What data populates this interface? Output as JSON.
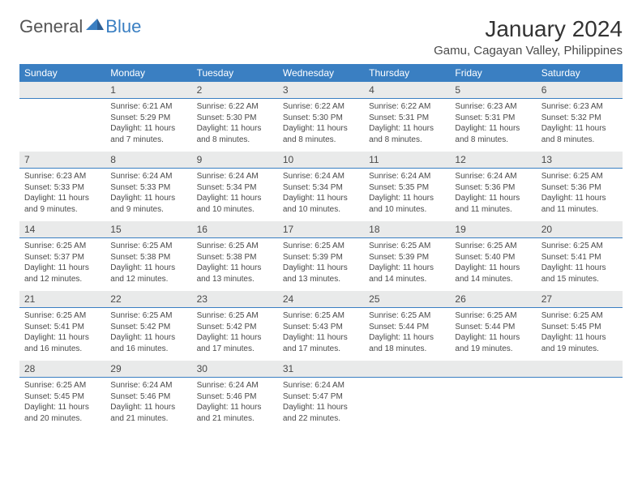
{
  "logo": {
    "general": "General",
    "blue": "Blue"
  },
  "title": "January 2024",
  "location": "Gamu, Cagayan Valley, Philippines",
  "colors": {
    "header_bg": "#3a7fc2",
    "header_text": "#ffffff",
    "daynum_bg": "#e9eaea",
    "accent_border": "#3a7fc2",
    "body_text": "#4a4a4a"
  },
  "dayNames": [
    "Sunday",
    "Monday",
    "Tuesday",
    "Wednesday",
    "Thursday",
    "Friday",
    "Saturday"
  ],
  "weeks": [
    [
      null,
      {
        "n": "1",
        "sr": "Sunrise: 6:21 AM",
        "ss": "Sunset: 5:29 PM",
        "d1": "Daylight: 11 hours",
        "d2": "and 7 minutes."
      },
      {
        "n": "2",
        "sr": "Sunrise: 6:22 AM",
        "ss": "Sunset: 5:30 PM",
        "d1": "Daylight: 11 hours",
        "d2": "and 8 minutes."
      },
      {
        "n": "3",
        "sr": "Sunrise: 6:22 AM",
        "ss": "Sunset: 5:30 PM",
        "d1": "Daylight: 11 hours",
        "d2": "and 8 minutes."
      },
      {
        "n": "4",
        "sr": "Sunrise: 6:22 AM",
        "ss": "Sunset: 5:31 PM",
        "d1": "Daylight: 11 hours",
        "d2": "and 8 minutes."
      },
      {
        "n": "5",
        "sr": "Sunrise: 6:23 AM",
        "ss": "Sunset: 5:31 PM",
        "d1": "Daylight: 11 hours",
        "d2": "and 8 minutes."
      },
      {
        "n": "6",
        "sr": "Sunrise: 6:23 AM",
        "ss": "Sunset: 5:32 PM",
        "d1": "Daylight: 11 hours",
        "d2": "and 8 minutes."
      }
    ],
    [
      {
        "n": "7",
        "sr": "Sunrise: 6:23 AM",
        "ss": "Sunset: 5:33 PM",
        "d1": "Daylight: 11 hours",
        "d2": "and 9 minutes."
      },
      {
        "n": "8",
        "sr": "Sunrise: 6:24 AM",
        "ss": "Sunset: 5:33 PM",
        "d1": "Daylight: 11 hours",
        "d2": "and 9 minutes."
      },
      {
        "n": "9",
        "sr": "Sunrise: 6:24 AM",
        "ss": "Sunset: 5:34 PM",
        "d1": "Daylight: 11 hours",
        "d2": "and 10 minutes."
      },
      {
        "n": "10",
        "sr": "Sunrise: 6:24 AM",
        "ss": "Sunset: 5:34 PM",
        "d1": "Daylight: 11 hours",
        "d2": "and 10 minutes."
      },
      {
        "n": "11",
        "sr": "Sunrise: 6:24 AM",
        "ss": "Sunset: 5:35 PM",
        "d1": "Daylight: 11 hours",
        "d2": "and 10 minutes."
      },
      {
        "n": "12",
        "sr": "Sunrise: 6:24 AM",
        "ss": "Sunset: 5:36 PM",
        "d1": "Daylight: 11 hours",
        "d2": "and 11 minutes."
      },
      {
        "n": "13",
        "sr": "Sunrise: 6:25 AM",
        "ss": "Sunset: 5:36 PM",
        "d1": "Daylight: 11 hours",
        "d2": "and 11 minutes."
      }
    ],
    [
      {
        "n": "14",
        "sr": "Sunrise: 6:25 AM",
        "ss": "Sunset: 5:37 PM",
        "d1": "Daylight: 11 hours",
        "d2": "and 12 minutes."
      },
      {
        "n": "15",
        "sr": "Sunrise: 6:25 AM",
        "ss": "Sunset: 5:38 PM",
        "d1": "Daylight: 11 hours",
        "d2": "and 12 minutes."
      },
      {
        "n": "16",
        "sr": "Sunrise: 6:25 AM",
        "ss": "Sunset: 5:38 PM",
        "d1": "Daylight: 11 hours",
        "d2": "and 13 minutes."
      },
      {
        "n": "17",
        "sr": "Sunrise: 6:25 AM",
        "ss": "Sunset: 5:39 PM",
        "d1": "Daylight: 11 hours",
        "d2": "and 13 minutes."
      },
      {
        "n": "18",
        "sr": "Sunrise: 6:25 AM",
        "ss": "Sunset: 5:39 PM",
        "d1": "Daylight: 11 hours",
        "d2": "and 14 minutes."
      },
      {
        "n": "19",
        "sr": "Sunrise: 6:25 AM",
        "ss": "Sunset: 5:40 PM",
        "d1": "Daylight: 11 hours",
        "d2": "and 14 minutes."
      },
      {
        "n": "20",
        "sr": "Sunrise: 6:25 AM",
        "ss": "Sunset: 5:41 PM",
        "d1": "Daylight: 11 hours",
        "d2": "and 15 minutes."
      }
    ],
    [
      {
        "n": "21",
        "sr": "Sunrise: 6:25 AM",
        "ss": "Sunset: 5:41 PM",
        "d1": "Daylight: 11 hours",
        "d2": "and 16 minutes."
      },
      {
        "n": "22",
        "sr": "Sunrise: 6:25 AM",
        "ss": "Sunset: 5:42 PM",
        "d1": "Daylight: 11 hours",
        "d2": "and 16 minutes."
      },
      {
        "n": "23",
        "sr": "Sunrise: 6:25 AM",
        "ss": "Sunset: 5:42 PM",
        "d1": "Daylight: 11 hours",
        "d2": "and 17 minutes."
      },
      {
        "n": "24",
        "sr": "Sunrise: 6:25 AM",
        "ss": "Sunset: 5:43 PM",
        "d1": "Daylight: 11 hours",
        "d2": "and 17 minutes."
      },
      {
        "n": "25",
        "sr": "Sunrise: 6:25 AM",
        "ss": "Sunset: 5:44 PM",
        "d1": "Daylight: 11 hours",
        "d2": "and 18 minutes."
      },
      {
        "n": "26",
        "sr": "Sunrise: 6:25 AM",
        "ss": "Sunset: 5:44 PM",
        "d1": "Daylight: 11 hours",
        "d2": "and 19 minutes."
      },
      {
        "n": "27",
        "sr": "Sunrise: 6:25 AM",
        "ss": "Sunset: 5:45 PM",
        "d1": "Daylight: 11 hours",
        "d2": "and 19 minutes."
      }
    ],
    [
      {
        "n": "28",
        "sr": "Sunrise: 6:25 AM",
        "ss": "Sunset: 5:45 PM",
        "d1": "Daylight: 11 hours",
        "d2": "and 20 minutes."
      },
      {
        "n": "29",
        "sr": "Sunrise: 6:24 AM",
        "ss": "Sunset: 5:46 PM",
        "d1": "Daylight: 11 hours",
        "d2": "and 21 minutes."
      },
      {
        "n": "30",
        "sr": "Sunrise: 6:24 AM",
        "ss": "Sunset: 5:46 PM",
        "d1": "Daylight: 11 hours",
        "d2": "and 21 minutes."
      },
      {
        "n": "31",
        "sr": "Sunrise: 6:24 AM",
        "ss": "Sunset: 5:47 PM",
        "d1": "Daylight: 11 hours",
        "d2": "and 22 minutes."
      },
      null,
      null,
      null
    ]
  ]
}
